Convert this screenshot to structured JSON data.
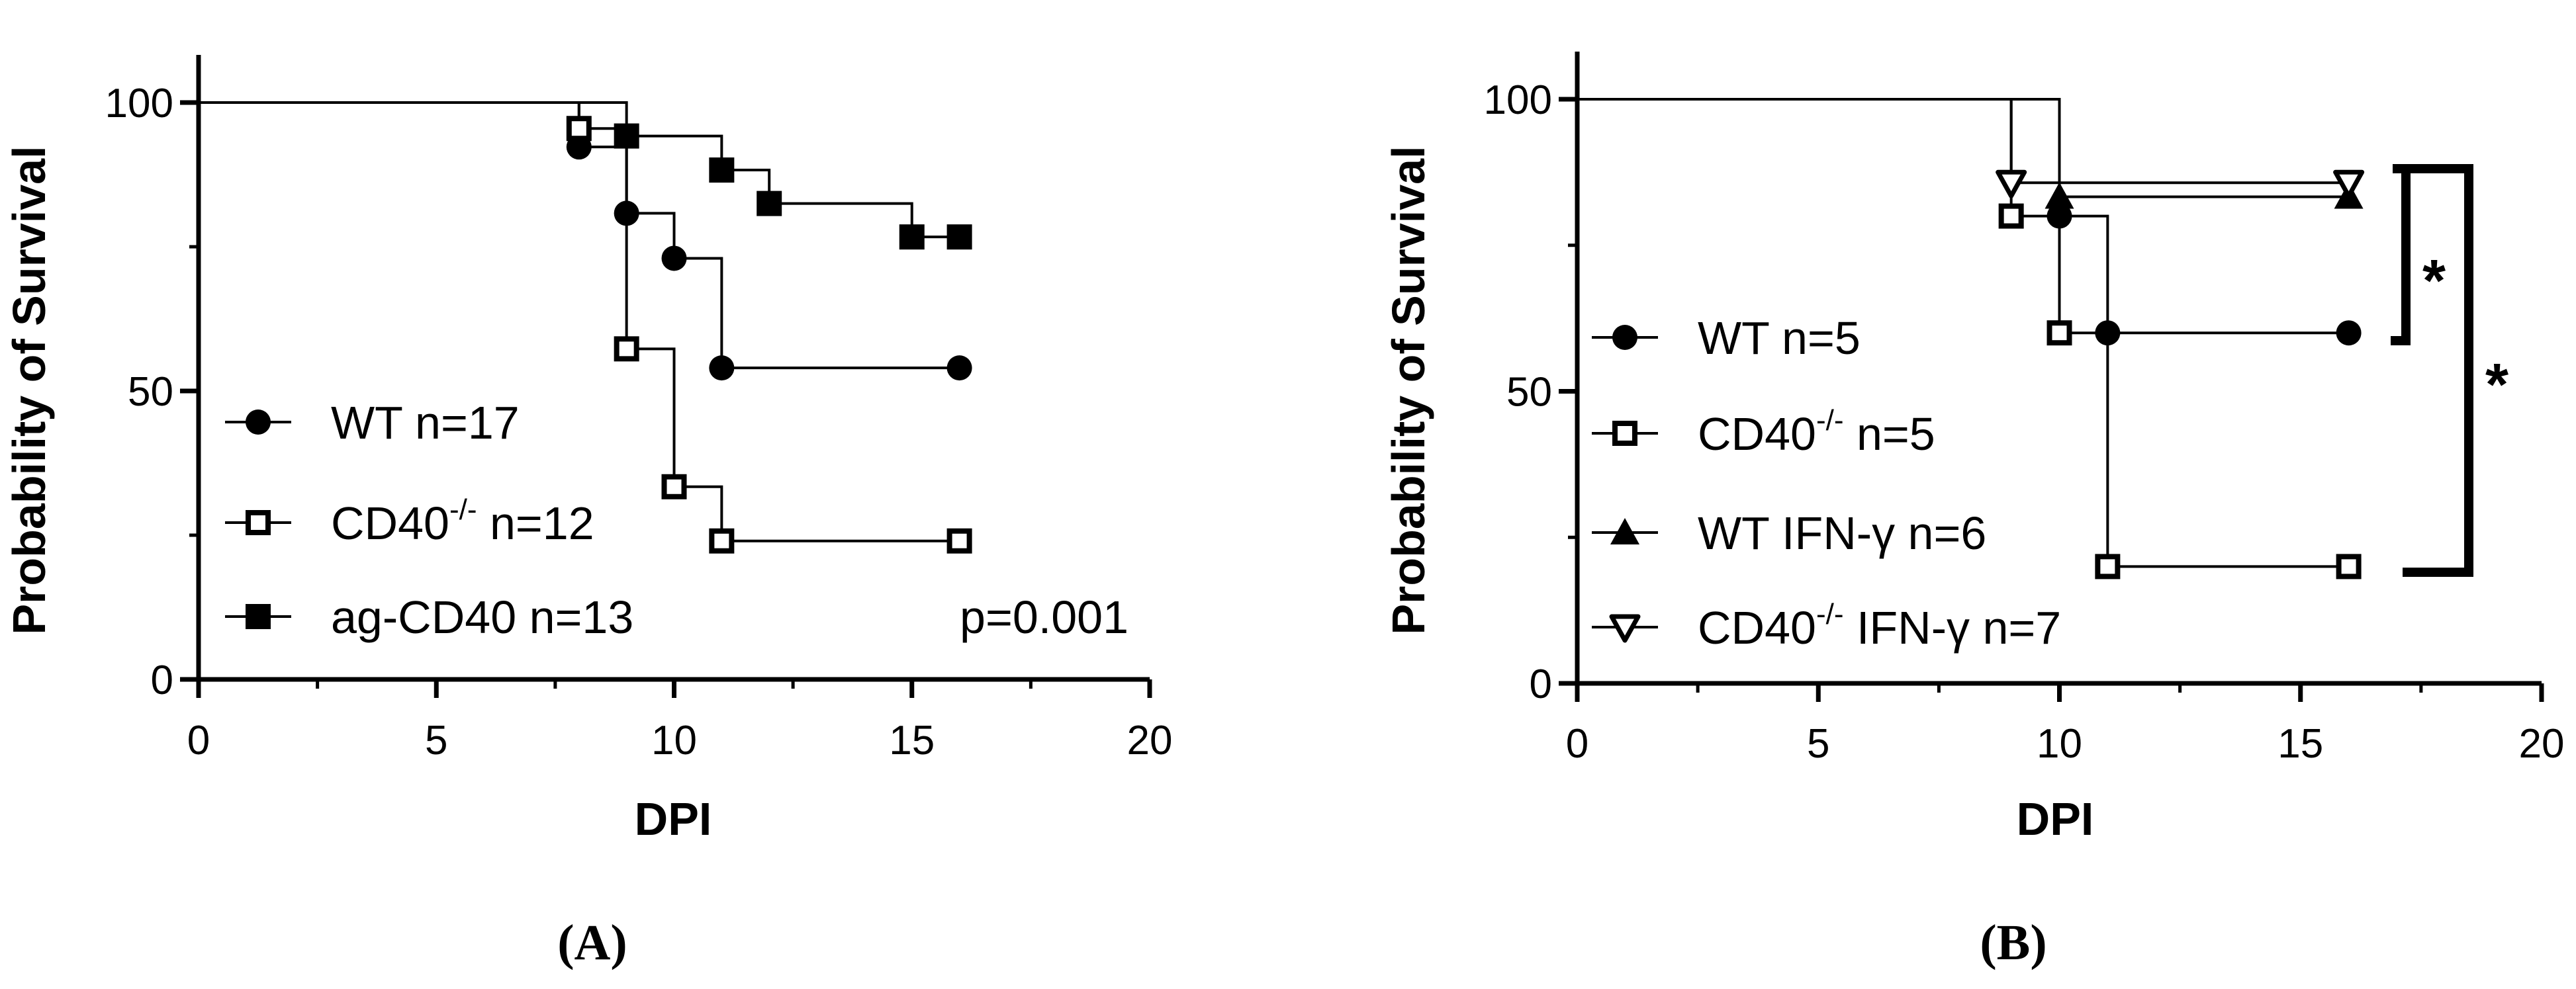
{
  "chart_data": [
    {
      "panel": "(A)",
      "type": "line",
      "subtype": "kaplan-meier",
      "xlabel": "DPI",
      "ylabel": "Probability of Survival",
      "xlim": [
        0,
        20
      ],
      "ylim": [
        0,
        100
      ],
      "xticks": [
        "0",
        "5",
        "10",
        "15",
        "20"
      ],
      "yticks": [
        "0",
        "50",
        "100"
      ],
      "grid": false,
      "legend_position": "lower-left",
      "annotation": "p=0.001",
      "series": [
        {
          "name": "WT n=17",
          "marker": "circle-filled",
          "steps": [
            [
              0,
              100
            ],
            [
              8,
              92.3
            ],
            [
              9,
              80.8
            ],
            [
              10,
              73
            ],
            [
              11,
              54
            ],
            [
              16,
              54
            ]
          ],
          "markers": [
            [
              8,
              92.3
            ],
            [
              9,
              80.8
            ],
            [
              10,
              73
            ],
            [
              11,
              54
            ],
            [
              16,
              54
            ]
          ]
        },
        {
          "name": "CD40-/- n=12",
          "marker": "square-open",
          "steps": [
            [
              0,
              100
            ],
            [
              8,
              95.5
            ],
            [
              9,
              57.3
            ],
            [
              10,
              33.4
            ],
            [
              11,
              24
            ],
            [
              16,
              24
            ]
          ],
          "markers": [
            [
              8,
              95.5
            ],
            [
              9,
              57.3
            ],
            [
              10,
              33.4
            ],
            [
              11,
              24
            ],
            [
              16,
              24
            ]
          ]
        },
        {
          "name": "ag-CD40 n=13",
          "marker": "square-filled",
          "steps": [
            [
              0,
              100
            ],
            [
              9,
              94.2
            ],
            [
              11,
              88.3
            ],
            [
              12,
              82.5
            ],
            [
              15,
              76.7
            ],
            [
              16,
              76.7
            ]
          ],
          "markers": [
            [
              9,
              94.2
            ],
            [
              11,
              88.3
            ],
            [
              12,
              82.5
            ],
            [
              15,
              76.7
            ],
            [
              16,
              76.7
            ]
          ]
        }
      ]
    },
    {
      "panel": "(B)",
      "type": "line",
      "subtype": "kaplan-meier",
      "xlabel": "DPI",
      "ylabel": "Probability of Survival",
      "xlim": [
        0,
        20
      ],
      "ylim": [
        0,
        100
      ],
      "xticks": [
        "0",
        "5",
        "10",
        "15",
        "20"
      ],
      "yticks": [
        "0",
        "50",
        "100"
      ],
      "grid": false,
      "legend_position": "lower-left",
      "significance": [
        {
          "between": [
            "WT n=5",
            "WT IFN-γ n=6"
          ],
          "label": "*"
        },
        {
          "between": [
            "CD40-/- n=5",
            "CD40-/- IFN-γ n=7"
          ],
          "label": "*"
        }
      ],
      "series": [
        {
          "name": "WT n=5",
          "marker": "circle-filled",
          "steps": [
            [
              0,
              100
            ],
            [
              10,
              80
            ],
            [
              11,
              60
            ],
            [
              16,
              60
            ]
          ],
          "markers": [
            [
              10,
              80
            ],
            [
              11,
              60
            ],
            [
              16,
              60
            ]
          ]
        },
        {
          "name": "CD40-/- n=5",
          "marker": "square-open",
          "steps": [
            [
              0,
              100
            ],
            [
              9,
              80
            ],
            [
              10,
              60
            ],
            [
              11,
              20
            ],
            [
              16,
              20
            ]
          ],
          "markers": [
            [
              9,
              80
            ],
            [
              10,
              60
            ],
            [
              11,
              20
            ],
            [
              16,
              20
            ]
          ]
        },
        {
          "name": "WT IFN-γ n=6",
          "marker": "triangle-filled",
          "steps": [
            [
              0,
              100
            ],
            [
              10,
              83.3
            ],
            [
              16,
              83.3
            ]
          ],
          "markers": [
            [
              10,
              83.3
            ],
            [
              16,
              83.3
            ]
          ]
        },
        {
          "name": "CD40-/- IFN-γ n=7",
          "marker": "triangle-down-open",
          "steps": [
            [
              0,
              100
            ],
            [
              9,
              85.7
            ],
            [
              16,
              85.7
            ]
          ],
          "markers": [
            [
              9,
              85.7
            ],
            [
              16,
              85.7
            ]
          ]
        }
      ]
    }
  ],
  "legend": {
    "A": [
      {
        "label": "WT n=17",
        "marker": "circle-filled"
      },
      {
        "base": "CD40",
        "sup": "-/-",
        "rest": " n=12",
        "marker": "square-open"
      },
      {
        "label": "ag-CD40 n=13",
        "marker": "square-filled"
      }
    ],
    "B": [
      {
        "label": "WT n=5",
        "marker": "circle-filled"
      },
      {
        "base": "CD40",
        "sup": "-/-",
        "rest": " n=5",
        "marker": "square-open"
      },
      {
        "label": "WT IFN-γ n=6",
        "marker": "triangle-filled"
      },
      {
        "base": "CD40",
        "sup": "-/-",
        "rest": " IFN-γ n=7",
        "marker": "triangle-down-open"
      }
    ]
  }
}
